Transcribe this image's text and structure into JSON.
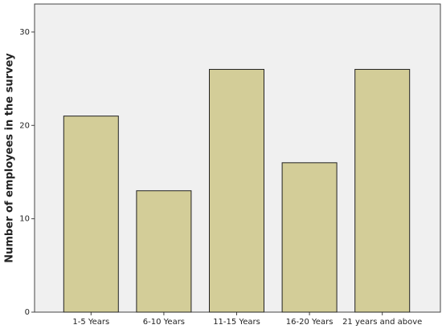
{
  "chart_data": {
    "type": "bar",
    "y_label": "Number of employees in the survey",
    "categories": [
      "1-5 Years",
      "6-10 Years",
      "11-15 Years",
      "16-20 Years",
      "21 years and above"
    ],
    "values": [
      21,
      13,
      26,
      16,
      26
    ],
    "color": "#d3cd98",
    "ylim": [
      0,
      33
    ],
    "yticks": [
      0,
      10,
      20,
      30
    ]
  }
}
